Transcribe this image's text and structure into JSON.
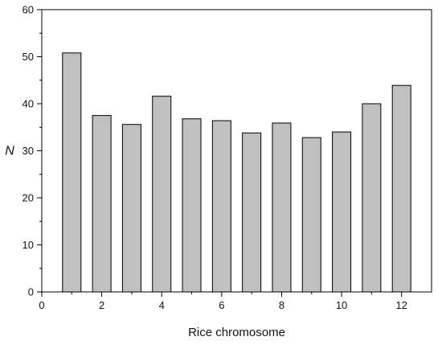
{
  "chart_data": {
    "type": "bar",
    "title": "",
    "xlabel": "Rice chromosome",
    "ylabel": "N",
    "x": [
      1,
      2,
      3,
      4,
      5,
      6,
      7,
      8,
      9,
      10,
      11,
      12
    ],
    "values": [
      50.8,
      37.5,
      35.6,
      41.6,
      36.8,
      36.4,
      33.8,
      35.9,
      32.8,
      34.0,
      40.0,
      43.9
    ],
    "xlim": [
      0,
      13
    ],
    "ylim": [
      0,
      60
    ],
    "x_ticks": [
      0,
      2,
      4,
      6,
      8,
      10,
      12
    ],
    "x_minor_ticks": [
      1,
      3,
      5,
      7,
      9,
      11
    ],
    "y_ticks": [
      0,
      10,
      20,
      30,
      40,
      50,
      60
    ],
    "y_minor_ticks": [
      5,
      15,
      25,
      35,
      45,
      55
    ],
    "grid": false,
    "legend": "none",
    "bar_color": "#c0c0c0",
    "bar_edge_color": "#000000"
  }
}
